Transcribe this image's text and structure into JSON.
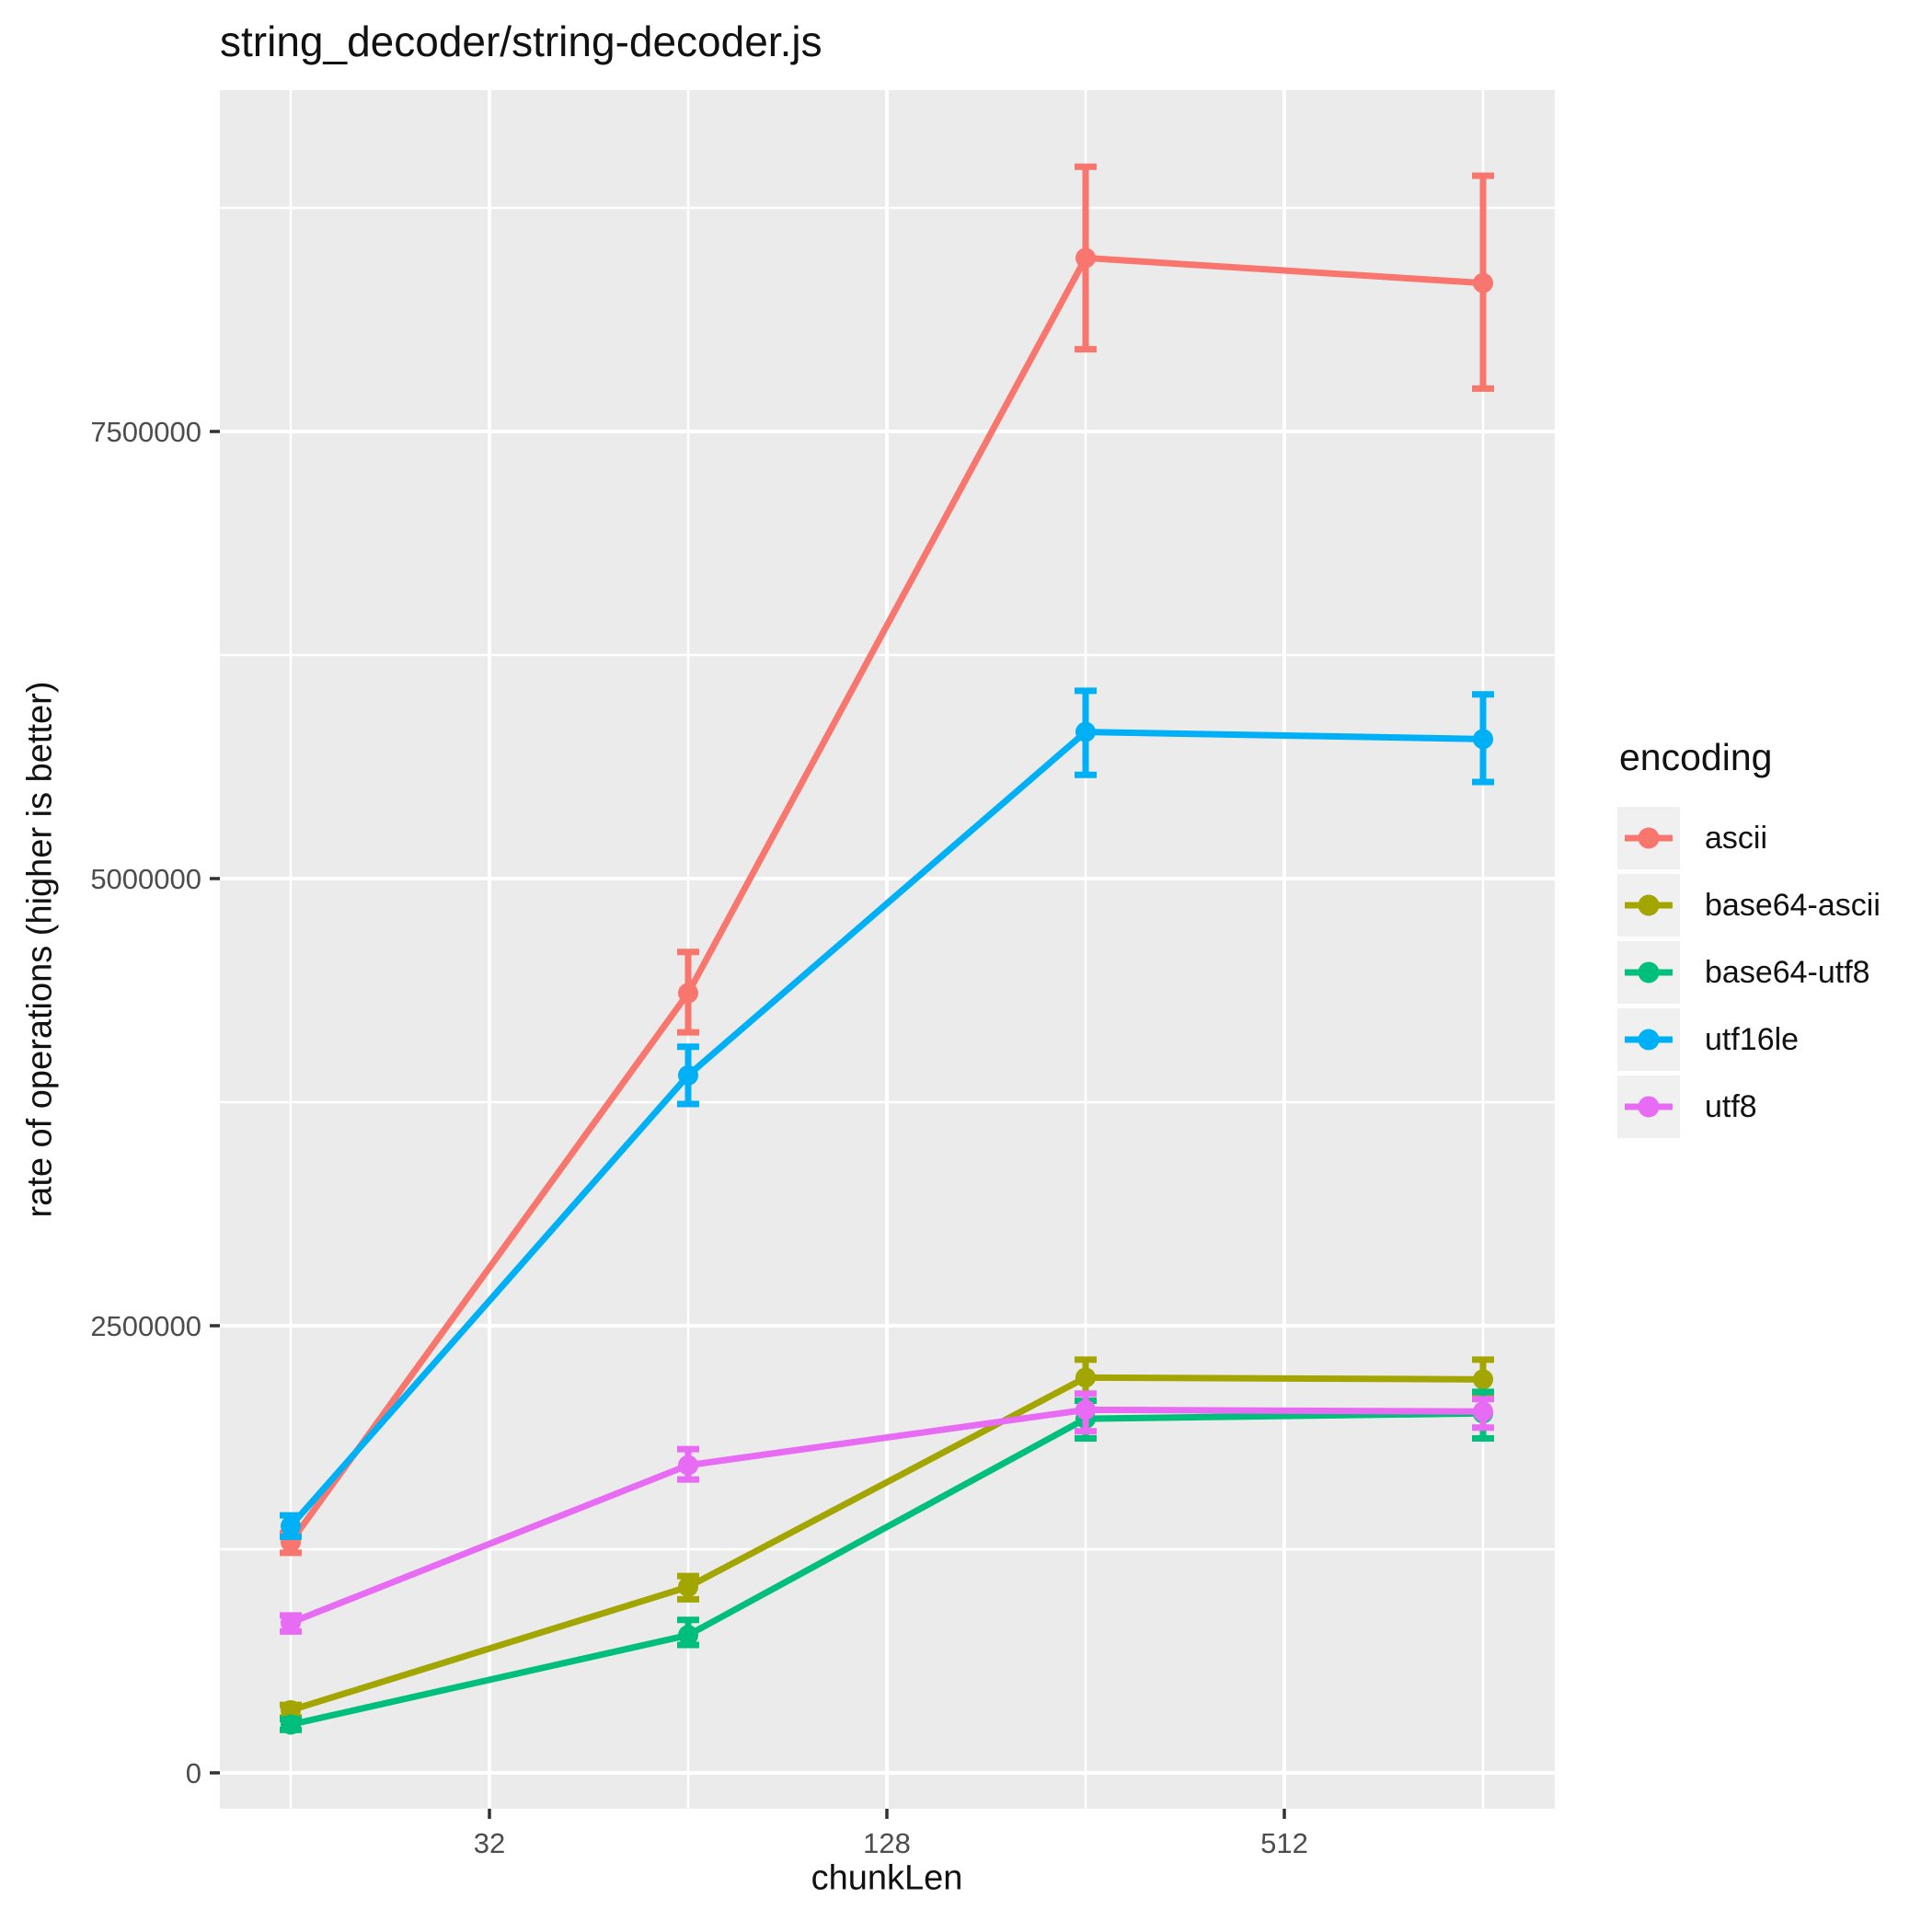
{
  "title": "string_decoder/string-decoder.js",
  "chart_data": {
    "type": "line",
    "title": "string_decoder/string-decoder.js",
    "xlabel": "chunkLen",
    "ylabel": "rate of operations (higher is better)",
    "x_scale": "log2",
    "x": [
      16,
      64,
      256,
      1024
    ],
    "x_ticks": [
      32,
      128,
      512
    ],
    "x_minor_ticks": [
      16,
      64,
      256,
      1024
    ],
    "y_ticks": [
      0,
      2500000,
      5000000,
      7500000
    ],
    "y_minor_ticks": [
      1250000,
      3750000,
      6250000,
      8750000
    ],
    "ylim": [
      -200000,
      9400000
    ],
    "grid": true,
    "legend_title": "encoding",
    "legend_position": "right",
    "series": [
      {
        "name": "ascii",
        "color": "#F8766D",
        "values": [
          1290000,
          4360000,
          8470000,
          8330000
        ],
        "err_lo": [
          1230000,
          4140000,
          7960000,
          7740000
        ],
        "err_hi": [
          1340000,
          4590000,
          8980000,
          8930000
        ]
      },
      {
        "name": "base64-ascii",
        "color": "#A3A500",
        "values": [
          350000,
          1040000,
          2210000,
          2200000
        ],
        "err_lo": [
          310000,
          970000,
          2120000,
          2110000
        ],
        "err_hi": [
          380000,
          1100000,
          2310000,
          2310000
        ]
      },
      {
        "name": "base64-utf8",
        "color": "#00BF7D",
        "values": [
          270000,
          770000,
          1980000,
          2010000
        ],
        "err_lo": [
          240000,
          715000,
          1870000,
          1870000
        ],
        "err_hi": [
          300000,
          855000,
          2080000,
          2130000
        ]
      },
      {
        "name": "utf16le",
        "color": "#00B0F6",
        "values": [
          1380000,
          3900000,
          5820000,
          5780000
        ],
        "err_lo": [
          1320000,
          3740000,
          5580000,
          5540000
        ],
        "err_hi": [
          1440000,
          4060000,
          6050000,
          6030000
        ]
      },
      {
        "name": "utf8",
        "color": "#E76BF3",
        "values": [
          840000,
          1720000,
          2030000,
          2020000
        ],
        "err_lo": [
          790000,
          1640000,
          1910000,
          1930000
        ],
        "err_hi": [
          880000,
          1810000,
          2120000,
          2090000
        ]
      }
    ]
  },
  "style": {
    "panel_bg": "#EBEBEB",
    "grid_color": "#FFFFFF",
    "tick_color": "#333333",
    "tick_label_color": "#4D4D4D",
    "legend_key_bg": "#F0F0F0"
  }
}
